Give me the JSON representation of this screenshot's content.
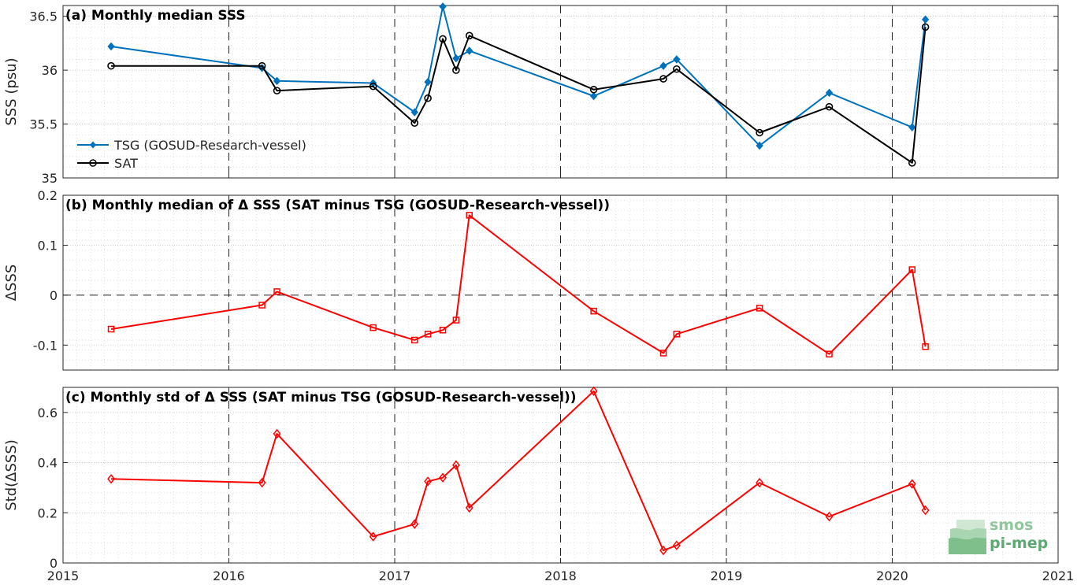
{
  "chart_data": [
    {
      "type": "line",
      "title": "(a) Monthly median SSS",
      "ylabel": "SSS (psu)",
      "xlim": [
        2015,
        2021
      ],
      "ylim": [
        35,
        36.6
      ],
      "yticks": [
        35,
        35.5,
        36,
        36.5
      ],
      "ytick_labels": [
        "35",
        "35.5",
        "36",
        "36.5"
      ],
      "grid": true,
      "legend_position": "bottom-left",
      "series": [
        {
          "name": "TSG (GOSUD-Research-vessel)",
          "color": "#0072BD",
          "marker": "filled-diamond",
          "x": [
            2015.29,
            2016.2,
            2016.29,
            2016.87,
            2017.12,
            2017.2,
            2017.29,
            2017.37,
            2017.45,
            2018.2,
            2018.62,
            2018.7,
            2019.2,
            2019.62,
            2020.12,
            2020.2
          ],
          "values": [
            36.22,
            36.02,
            35.9,
            35.88,
            35.61,
            35.89,
            36.59,
            36.11,
            36.18,
            35.76,
            36.04,
            36.1,
            35.3,
            35.79,
            35.47,
            36.47
          ]
        },
        {
          "name": "SAT",
          "color": "#000000",
          "marker": "open-circle",
          "x": [
            2015.29,
            2016.2,
            2016.29,
            2016.87,
            2017.12,
            2017.2,
            2017.29,
            2017.37,
            2017.45,
            2018.2,
            2018.62,
            2018.7,
            2019.2,
            2019.62,
            2020.12,
            2020.2
          ],
          "values": [
            36.04,
            36.04,
            35.81,
            35.85,
            35.51,
            35.74,
            36.29,
            36.0,
            36.32,
            35.82,
            35.92,
            36.01,
            35.42,
            35.66,
            35.14,
            36.4
          ]
        }
      ]
    },
    {
      "type": "line",
      "title": "(b) Monthly median of Δ SSS (SAT minus TSG (GOSUD-Research-vessel))",
      "ylabel": "ΔSSS",
      "xlim": [
        2015,
        2021
      ],
      "ylim": [
        -0.15,
        0.2
      ],
      "yticks": [
        -0.1,
        0,
        0.1,
        0.2
      ],
      "ytick_labels": [
        "-0.1",
        "0",
        "0.1",
        "0.2"
      ],
      "zero_line": true,
      "grid": true,
      "series": [
        {
          "color": "#FF0000",
          "marker": "open-square",
          "x": [
            2015.29,
            2016.2,
            2016.29,
            2016.87,
            2017.12,
            2017.2,
            2017.29,
            2017.37,
            2017.45,
            2018.2,
            2018.62,
            2018.7,
            2019.2,
            2019.62,
            2020.12,
            2020.2
          ],
          "values": [
            -0.068,
            -0.02,
            0.007,
            -0.065,
            -0.09,
            -0.078,
            -0.07,
            -0.05,
            0.16,
            -0.032,
            -0.116,
            -0.078,
            -0.026,
            -0.118,
            0.051,
            -0.103
          ]
        }
      ]
    },
    {
      "type": "line",
      "title": "(c) Monthly std of Δ SSS (SAT minus TSG (GOSUD-Research-vessel))",
      "ylabel": "Std(ΔSSS)",
      "xlabel": "",
      "xlim": [
        2015,
        2021
      ],
      "ylim": [
        0,
        0.7
      ],
      "yticks": [
        0,
        0.2,
        0.4,
        0.6
      ],
      "ytick_labels": [
        "0",
        "0.2",
        "0.4",
        "0.6"
      ],
      "xticks": [
        2015,
        2016,
        2017,
        2018,
        2019,
        2020,
        2021
      ],
      "xtick_labels": [
        "2015",
        "2016",
        "2017",
        "2018",
        "2019",
        "2020",
        "2021"
      ],
      "grid": true,
      "series": [
        {
          "color": "#FF0000",
          "marker": "open-diamond",
          "x": [
            2015.29,
            2016.2,
            2016.29,
            2016.87,
            2017.12,
            2017.2,
            2017.29,
            2017.37,
            2017.45,
            2018.2,
            2018.62,
            2018.7,
            2019.2,
            2019.62,
            2020.12,
            2020.2
          ],
          "values": [
            0.335,
            0.32,
            0.515,
            0.105,
            0.155,
            0.325,
            0.34,
            0.39,
            0.22,
            0.685,
            0.05,
            0.07,
            0.32,
            0.185,
            0.315,
            0.21
          ]
        }
      ]
    }
  ],
  "logo": {
    "line1": "smos",
    "line2": "pi-mep",
    "color_light": "#8fc79a",
    "color_dark": "#5ea873"
  }
}
